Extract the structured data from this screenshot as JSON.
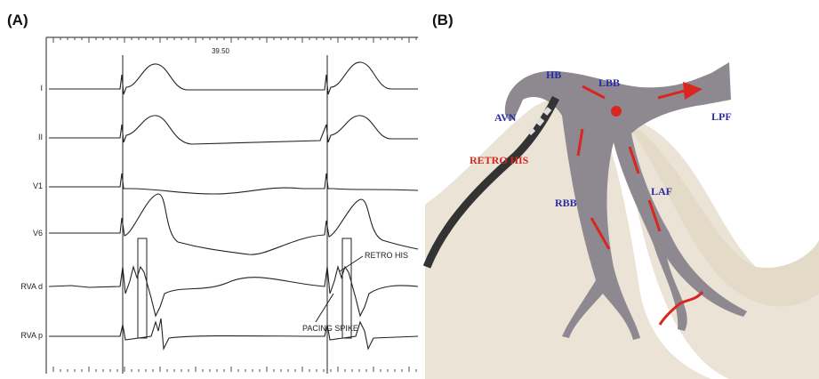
{
  "panel_a": {
    "label": "(A)",
    "time_marker": "39.50",
    "leads": [
      "I",
      "II",
      "V1",
      "V6",
      "RVA d",
      "RVA p"
    ],
    "annotations": [
      "RETRO HIS",
      "PACING SPIKE"
    ]
  },
  "panel_b": {
    "label": "(B)",
    "labels": [
      "HB",
      "LBB",
      "AVN",
      "LPF",
      "RETRO HIS",
      "RBB",
      "LAF"
    ]
  }
}
